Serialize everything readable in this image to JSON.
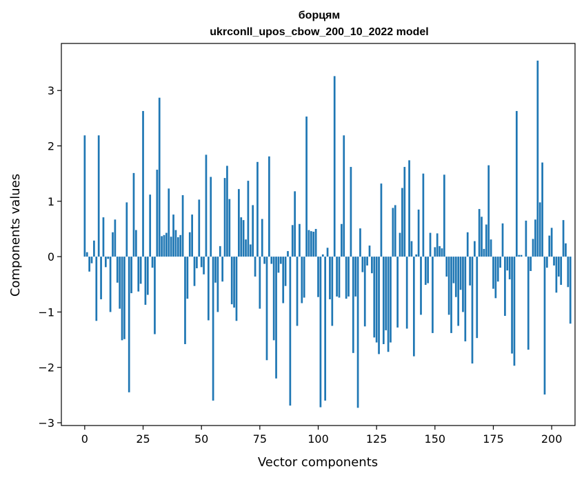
{
  "chart_data": {
    "type": "bar",
    "title": "борцям",
    "subtitle": "ukrconll_upos_cbow_200_10_2022 model",
    "xlabel": "Vector components",
    "ylabel": "Components values",
    "xlim": [
      -10,
      210
    ],
    "ylim": [
      -3.05,
      3.85
    ],
    "xticks": [
      0,
      25,
      50,
      75,
      100,
      125,
      150,
      175,
      200
    ],
    "yticks": [
      -3,
      -2,
      -1,
      0,
      1,
      2,
      3
    ],
    "grid": false,
    "legend": "none",
    "bar_color": "#1f77b4",
    "values": [
      2.19,
      0.08,
      -0.27,
      -0.12,
      0.29,
      -1.16,
      2.19,
      -0.77,
      0.71,
      -0.19,
      -0.04,
      -1.0,
      0.44,
      0.67,
      -0.47,
      -0.94,
      -1.51,
      -1.49,
      0.98,
      -2.45,
      -0.66,
      1.51,
      0.48,
      -0.63,
      -0.49,
      2.63,
      -0.87,
      -0.69,
      1.12,
      -0.2,
      -1.4,
      1.57,
      2.87,
      0.37,
      0.39,
      0.43,
      1.23,
      0.36,
      0.76,
      0.48,
      0.35,
      0.39,
      1.11,
      -1.58,
      -0.76,
      0.44,
      0.76,
      -0.53,
      -0.21,
      1.03,
      -0.19,
      -0.32,
      1.84,
      -1.15,
      1.44,
      -2.6,
      -0.47,
      -1.0,
      0.19,
      -0.45,
      1.42,
      1.64,
      1.04,
      -0.86,
      -0.92,
      -1.16,
      1.22,
      0.71,
      0.66,
      0.31,
      1.37,
      0.22,
      0.93,
      -0.36,
      1.71,
      -0.94,
      0.68,
      -0.13,
      -1.87,
      1.81,
      -0.13,
      -1.51,
      -2.2,
      -0.29,
      -0.13,
      -0.84,
      -0.53,
      0.1,
      -2.69,
      0.57,
      1.18,
      -1.25,
      0.59,
      -0.84,
      -0.74,
      2.53,
      0.48,
      0.46,
      0.45,
      0.5,
      -0.73,
      -2.72,
      0.04,
      -2.6,
      0.16,
      -0.77,
      -1.25,
      3.26,
      -0.72,
      -0.74,
      0.59,
      2.19,
      -0.76,
      -0.72,
      1.62,
      -1.74,
      -0.72,
      -2.73,
      0.51,
      -0.28,
      -1.26,
      -0.16,
      0.2,
      -0.3,
      -1.46,
      -1.55,
      -1.76,
      1.32,
      -1.58,
      -1.33,
      -1.72,
      -1.55,
      0.88,
      0.93,
      -1.28,
      0.43,
      1.24,
      1.62,
      -1.3,
      1.74,
      0.28,
      -1.8,
      0.04,
      0.85,
      -1.05,
      1.5,
      -0.51,
      -0.48,
      0.43,
      -1.38,
      0.17,
      0.42,
      0.19,
      0.15,
      1.48,
      -0.36,
      -1.05,
      -1.38,
      -0.48,
      -0.73,
      -1.25,
      -0.6,
      -1.0,
      -1.53,
      0.44,
      -0.52,
      -1.93,
      0.28,
      -1.47,
      0.86,
      0.72,
      0.14,
      0.58,
      1.65,
      0.31,
      -0.58,
      -0.75,
      -0.45,
      -0.2,
      0.6,
      -1.07,
      -0.25,
      -0.41,
      -1.75,
      -1.97,
      2.63,
      0.03,
      0.03,
      0.0,
      0.65,
      -1.68,
      -0.26,
      0.32,
      0.67,
      3.54,
      0.98,
      1.7,
      -2.49,
      -0.2,
      0.38,
      0.52,
      -0.16,
      -0.65,
      -0.36,
      -0.51,
      0.66,
      0.24,
      -0.55,
      -1.21
    ]
  }
}
